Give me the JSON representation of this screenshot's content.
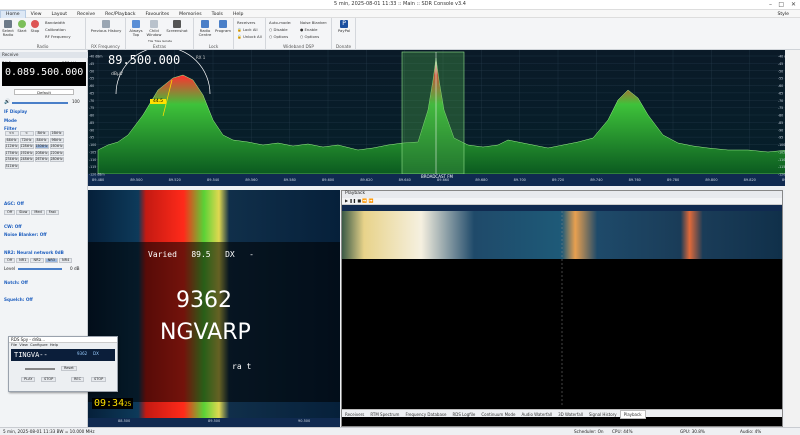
{
  "window": {
    "title": "5 min, 2025-08-01 11:33 :: Main :: SDR Console v3.4"
  },
  "menu": {
    "items": [
      "Home",
      "View",
      "Layout",
      "Receive",
      "Rec/Playback",
      "Favourites",
      "Memories",
      "Tools",
      "Help"
    ],
    "style": "Style"
  },
  "ribbon": {
    "radio": {
      "label": "Radio",
      "select": "Select Radio",
      "start": "Start",
      "stop": "Stop",
      "dd1": "Bandwidth",
      "dd2": "Calibration",
      "dd3": "RF Frequency"
    },
    "rxfreq": {
      "label": "RX Frequency",
      "prev": "Previous History"
    },
    "extras": {
      "label": "Extras",
      "always": "Always Top",
      "child": "Child Window",
      "screenshot": "Screenshot",
      "fine": "Tile Tiles Isolate"
    },
    "lock": {
      "label": "Lock",
      "radio": "Radio Centre",
      "program": "Program"
    },
    "receivers": {
      "label": "Receivers",
      "lockall": "Lock All",
      "unlockall": "Unlock All"
    },
    "wdsp": {
      "label": "Wideband DSP",
      "automode": "Auto-mode:",
      "disable": "Disable",
      "options": "Options",
      "nb": "Noise Blanker:",
      "enable": "Enable",
      "options2": "Options"
    },
    "donate": {
      "label": "Donate",
      "paypal": "PayPal"
    }
  },
  "left": {
    "receive": "Receive",
    "rx": "RX 1",
    "rxbw": "151 kHz",
    "freq": "0.089.500.000",
    "mode": "Default",
    "vol": "100",
    "if": "IF Display",
    "modes": "Mode",
    "filter": "Filter",
    "filters": [
      "<<",
      "<",
      "8kHz",
      "16kHz",
      "64kHz",
      "72kHz",
      "84kHz",
      "96kHz",
      "112kHz",
      "128kHz",
      "150kHz",
      "160kHz",
      "175kHz",
      "192kHz",
      "208kHz",
      "220kHz",
      "234kHz",
      "248kHz",
      "267kHz",
      "280kHz",
      "311kHz"
    ],
    "agc": "AGC: Off",
    "cw": "CW: Off",
    "nb": "Noise Blanker: Off",
    "nr2": "NR2: Neural network 0dB",
    "level": "Level",
    "leveldb": "0 dB",
    "notch": "Notch: Off",
    "squelch": "Squelch: Off",
    "agcbtns": [
      "Off",
      "Slow",
      "Med",
      "Fast"
    ],
    "nr2btns": [
      "Off",
      "NR1",
      "NR2",
      "NR3",
      "NR4"
    ]
  },
  "spectrum": {
    "freq": "89.500.000",
    "rx": "RX 1",
    "sig": "dBµV",
    "meter": "44.5",
    "label": "BROADCAST FM",
    "ymarks": [
      "-40 dBm",
      "-45",
      "-50",
      "-55",
      "-60",
      "-65",
      "-70",
      "-75",
      "-80",
      "-85",
      "-90",
      "-95",
      "-100",
      "-105",
      "-110",
      "-115",
      "-120 dBm"
    ],
    "xmarks": [
      "89.480",
      "89.500",
      "89.520",
      "89.540",
      "89.560",
      "89.580",
      "89.600",
      "89.620",
      "89.640",
      "89.660",
      "89.680",
      "89.700",
      "89.720",
      "89.740",
      "89.760",
      "89.780",
      "89.800",
      "89.820",
      "89.840"
    ]
  },
  "rdsview": {
    "line1": "Varied   89.5   DX   -",
    "pi": "9362",
    "ps": "NGVARP",
    "rt": "ra t",
    "time": "09:34",
    "sec": "25",
    "bottom": [
      "88.500",
      "89.500",
      "90.500"
    ]
  },
  "playback": {
    "title": "Playback",
    "tabs": [
      "Receivers",
      "RTM Spectrum",
      "Frequency Database",
      "RDS Logfile",
      "Continuum Mode",
      "Audio Waterfall",
      "3D Waterfall",
      "Signal History",
      "Playback"
    ]
  },
  "rdsspy": {
    "title": "RDS Spy - dr8a...",
    "menu": [
      "File",
      "View",
      "Configure",
      "Help"
    ],
    "ps": "TINGVA--",
    "pi": "9362",
    "bd": "DX",
    "reset": "Reset",
    "play": "PLAY",
    "stop": "STOP",
    "rec": "REC",
    "stop2": "STOP"
  },
  "status": {
    "left": "5 min, 2025-08-01 11:33  BW = 10.000 MHz",
    "sched": "Scheduler: On",
    "cpu": "CPU: 44%",
    "gpu": "GPU: 30.8%",
    "audio": "Audio: 4%"
  }
}
